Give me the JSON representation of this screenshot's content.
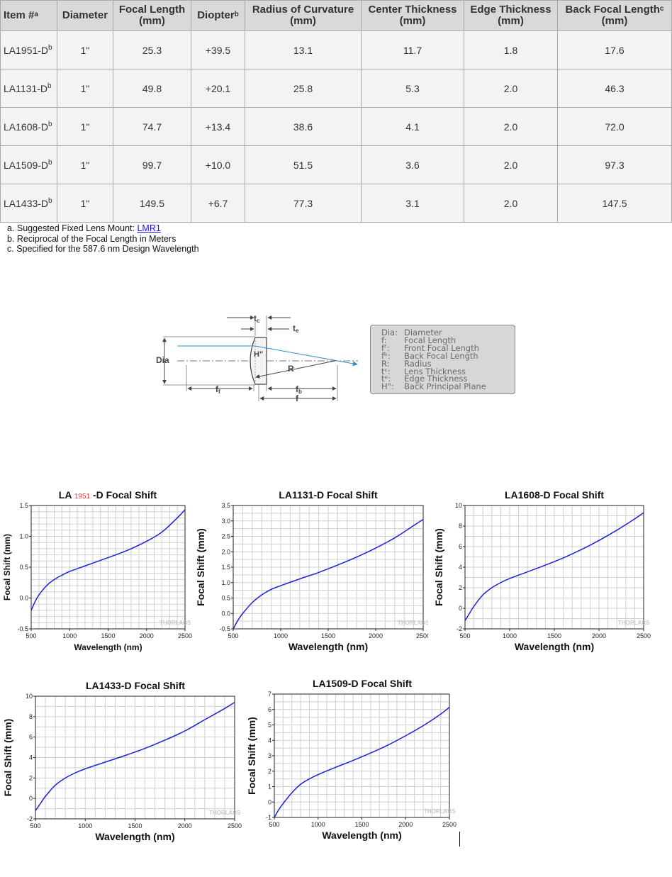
{
  "table": {
    "headers": [
      {
        "text": "Item #",
        "sup": "a"
      },
      {
        "text": "Diameter",
        "sup": ""
      },
      {
        "text": "Focal Length (mm)",
        "sup": ""
      },
      {
        "text": "Diopter",
        "sup": "b"
      },
      {
        "text": "Radius of Curvature (mm)",
        "sup": ""
      },
      {
        "text": "Center Thickness (mm)",
        "sup": ""
      },
      {
        "text": "Edge Thickness (mm)",
        "sup": ""
      },
      {
        "text": "Back Focal Length",
        "sup": "c",
        "unit": "(mm)"
      }
    ],
    "rows": [
      {
        "item": "LA1951-D",
        "sup": "b",
        "diameter": "1\"",
        "focal": "25.3",
        "diopter": "+39.5",
        "radius": "13.1",
        "center": "11.7",
        "edge": "1.8",
        "bfl": "17.6"
      },
      {
        "item": "LA1131-D",
        "sup": "b",
        "diameter": "1\"",
        "focal": "49.8",
        "diopter": "+20.1",
        "radius": "25.8",
        "center": "5.3",
        "edge": "2.0",
        "bfl": "46.3"
      },
      {
        "item": "LA1608-D",
        "sup": "b",
        "diameter": "1\"",
        "focal": "74.7",
        "diopter": "+13.4",
        "radius": "38.6",
        "center": "4.1",
        "edge": "2.0",
        "bfl": "72.0"
      },
      {
        "item": "LA1509-D",
        "sup": "b",
        "diameter": "1\"",
        "focal": "99.7",
        "diopter": "+10.0",
        "radius": "51.5",
        "center": "3.6",
        "edge": "2.0",
        "bfl": "97.3"
      },
      {
        "item": "LA1433-D",
        "sup": "b",
        "diameter": "1\"",
        "focal": "149.5",
        "diopter": "+6.7",
        "radius": "77.3",
        "center": "3.1",
        "edge": "2.0",
        "bfl": "147.5"
      }
    ]
  },
  "notes": {
    "a_text": "a.  Suggested Fixed Lens Mount: ",
    "a_link": "LMR1",
    "b_text": "b.  Reciprocal of the Focal Length in Meters",
    "c_text": "c.  Specified for the 587.6 nm Design Wavelength"
  },
  "diagram": {
    "labels": {
      "dia": "Dia",
      "tc": "t",
      "tc_sub": "c",
      "te": "t",
      "te_sub": "e",
      "h": "H\"",
      "r": "R",
      "ff": "f",
      "ff_sub": "f",
      "fb": "f",
      "fb_sub": "b",
      "f": "f"
    },
    "legend": [
      {
        "k": "Dia:",
        "v": "Diameter"
      },
      {
        "k": "f:",
        "v": "Focal Length"
      },
      {
        "k": "fᶠ:",
        "v": "Front Focal Length"
      },
      {
        "k": "fᵇ:",
        "v": "Back Focal Length"
      },
      {
        "k": "R:",
        "v": "Radius"
      },
      {
        "k": "tᶜ:",
        "v": "Lens Thickness"
      },
      {
        "k": "tᵉ:",
        "v": "Edge Thickness"
      },
      {
        "k": "H\":",
        "v": "Back Principal Plane"
      }
    ]
  },
  "chart_data": [
    {
      "type": "line",
      "title_prefix": "LA ",
      "title_highlight": "1951",
      "title_suffix": " -D Focal Shift",
      "title_color": "#111111",
      "highlight_color": "#e53935",
      "xlabel": "Wavelength (nm)",
      "ylabel": "Focal Shift (mm)",
      "xlim": [
        500,
        2500
      ],
      "ylim": [
        -0.5,
        1.5
      ],
      "xticks": [
        500,
        1000,
        1500,
        2000,
        2500
      ],
      "yticks": [
        -0.5,
        0.0,
        0.5,
        1.0,
        1.5
      ],
      "ytick_labels": [
        "-0.5",
        "0.0",
        "0.5",
        "1.0",
        "1.5"
      ],
      "xminor": 100,
      "yminor": 0.1,
      "watermark": "THORLABS",
      "line_color": "#1a22d8",
      "series": [
        {
          "x": [
            500,
            550,
            600,
            700,
            800,
            900,
            1000,
            1200,
            1400,
            1600,
            1800,
            2000,
            2200,
            2400,
            2500
          ],
          "y": [
            -0.2,
            -0.06,
            0.05,
            0.2,
            0.3,
            0.37,
            0.43,
            0.52,
            0.61,
            0.7,
            0.8,
            0.92,
            1.07,
            1.3,
            1.43
          ]
        }
      ]
    },
    {
      "type": "line",
      "title_prefix": "LA1131-D Focal Shift",
      "title_highlight": "",
      "title_suffix": "",
      "title_color": "#111111",
      "highlight_color": "#e53935",
      "xlabel": "Wavelength (nm)",
      "ylabel": "Focal Shift (mm)",
      "xlim": [
        500,
        2500
      ],
      "ylim": [
        -0.5,
        3.5
      ],
      "xticks": [
        500,
        1000,
        1500,
        2000,
        2500
      ],
      "yticks": [
        -0.5,
        0.0,
        0.5,
        1.0,
        1.5,
        2.0,
        2.5,
        3.0,
        3.5
      ],
      "ytick_labels": [
        "-0.5",
        "0.0",
        "0.5",
        "1.0",
        "1.5",
        "2.0",
        "2.5",
        "3.0",
        "3.5"
      ],
      "xminor": 100,
      "yminor": 0.25,
      "watermark": "THORLABS",
      "line_color": "#1a22d8",
      "series": [
        {
          "x": [
            500,
            550,
            600,
            700,
            800,
            900,
            1000,
            1200,
            1400,
            1600,
            1800,
            2000,
            2200,
            2400,
            2500
          ],
          "y": [
            -0.5,
            -0.22,
            0.0,
            0.35,
            0.6,
            0.78,
            0.9,
            1.12,
            1.33,
            1.57,
            1.83,
            2.12,
            2.45,
            2.85,
            3.05
          ]
        }
      ]
    },
    {
      "type": "line",
      "title_prefix": "LA1608-D Focal Shift",
      "title_highlight": "",
      "title_suffix": "",
      "title_color": "#111111",
      "highlight_color": "#e53935",
      "xlabel": "Wavelength (nm)",
      "ylabel": "Focal Shift (mm)",
      "xlim": [
        500,
        2500
      ],
      "ylim": [
        -2,
        10
      ],
      "xticks": [
        500,
        1000,
        1500,
        2000,
        2500
      ],
      "yticks": [
        -2,
        0,
        2,
        4,
        6,
        8,
        10
      ],
      "ytick_labels": [
        "-2",
        "0",
        "2",
        "4",
        "6",
        "8",
        "10"
      ],
      "xminor": 100,
      "yminor": 1,
      "watermark": "THORLABS",
      "line_color": "#1a22d8",
      "series": [
        {
          "x": [
            500,
            550,
            600,
            700,
            800,
            900,
            1000,
            1200,
            1400,
            1600,
            1800,
            2000,
            2200,
            2400,
            2500
          ],
          "y": [
            -1.2,
            -0.5,
            0.2,
            1.3,
            2.0,
            2.5,
            2.9,
            3.55,
            4.2,
            4.9,
            5.7,
            6.6,
            7.6,
            8.7,
            9.3
          ]
        }
      ]
    },
    {
      "type": "line",
      "title_prefix": "LA1433-D Focal Shift",
      "title_highlight": "",
      "title_suffix": "",
      "title_color": "#111111",
      "highlight_color": "#e53935",
      "xlabel": "Wavelength (nm)",
      "ylabel": "Focal Shift (mm)",
      "xlim": [
        500,
        2500
      ],
      "ylim": [
        -2,
        10
      ],
      "xticks": [
        500,
        1000,
        1500,
        2000,
        2500
      ],
      "yticks": [
        -2,
        0,
        2,
        4,
        6,
        8,
        10
      ],
      "ytick_labels": [
        "-2",
        "0",
        "2",
        "4",
        "6",
        "8",
        "10"
      ],
      "xminor": 100,
      "yminor": 1,
      "watermark": "THORLABS",
      "line_color": "#1a22d8",
      "series": [
        {
          "x": [
            500,
            550,
            600,
            700,
            800,
            900,
            1000,
            1200,
            1400,
            1600,
            1800,
            2000,
            2200,
            2400,
            2500
          ],
          "y": [
            -1.2,
            -0.5,
            0.2,
            1.3,
            2.0,
            2.5,
            2.9,
            3.55,
            4.2,
            4.9,
            5.7,
            6.6,
            7.7,
            8.8,
            9.4
          ]
        }
      ]
    },
    {
      "type": "line",
      "title_prefix": "LA1509-D Focal Shift",
      "title_highlight": "",
      "title_suffix": "",
      "title_color": "#111111",
      "highlight_color": "#e53935",
      "xlabel": "Wavelength (nm)",
      "ylabel": "Focal Shift (mm)",
      "xlim": [
        500,
        2500
      ],
      "ylim": [
        -1,
        7
      ],
      "xticks": [
        500,
        1000,
        1500,
        2000,
        2500
      ],
      "yticks": [
        -1,
        0,
        1,
        2,
        3,
        4,
        5,
        6,
        7
      ],
      "ytick_labels": [
        "-1",
        "0",
        "1",
        "2",
        "3",
        "4",
        "5",
        "6",
        "7"
      ],
      "xminor": 100,
      "yminor": 0.5,
      "watermark": "THORLABS",
      "line_color": "#1a22d8",
      "series": [
        {
          "x": [
            500,
            550,
            600,
            700,
            800,
            900,
            1000,
            1200,
            1400,
            1600,
            1800,
            2000,
            2200,
            2400,
            2500
          ],
          "y": [
            -1.0,
            -0.5,
            -0.1,
            0.6,
            1.15,
            1.5,
            1.78,
            2.25,
            2.7,
            3.18,
            3.7,
            4.3,
            4.95,
            5.7,
            6.15
          ]
        }
      ]
    }
  ]
}
